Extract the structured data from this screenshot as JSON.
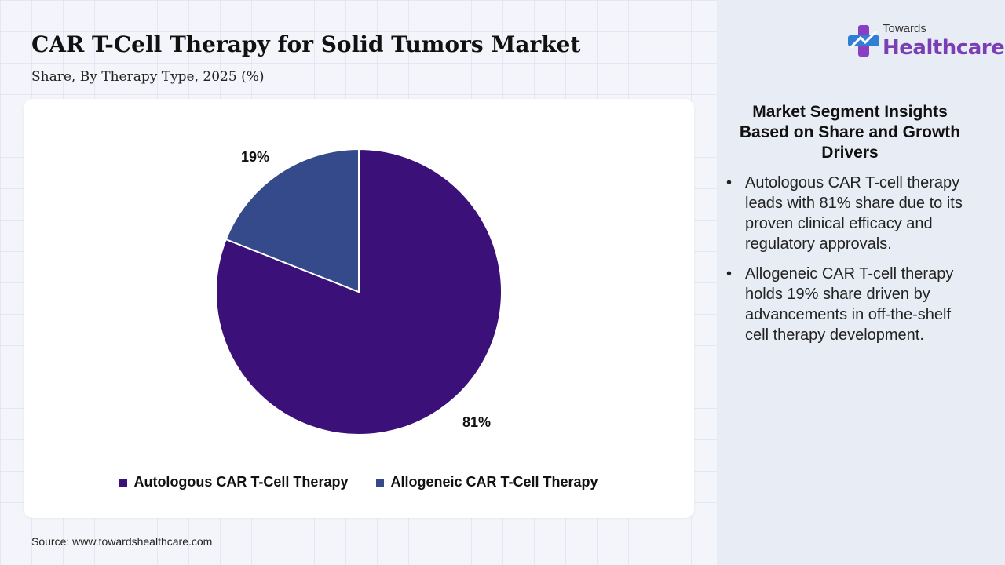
{
  "header": {
    "title": "CAR T-Cell Therapy for Solid Tumors Market",
    "subtitle": "Share, By Therapy Type, 2025 (%)"
  },
  "logo": {
    "top_text": "Towards",
    "main_text": "Healthcare"
  },
  "chart_data": {
    "type": "pie",
    "categories": [
      "Autologous CAR T-Cell Therapy",
      "Allogeneic CAR T-Cell Therapy"
    ],
    "values": [
      81,
      19
    ],
    "data_labels": [
      "81%",
      "19%"
    ],
    "colors": [
      "#3b1078",
      "#354a8a"
    ],
    "legend_position": "bottom"
  },
  "insights": {
    "title": "Market Segment Insights Based on Share and Growth Drivers",
    "bullets": [
      "Autologous CAR T-cell therapy leads with 81% share due to its proven clinical efficacy and regulatory approvals.",
      "Allogeneic CAR T-cell therapy holds 19% share driven by advancements in off-the-shelf cell therapy development."
    ]
  },
  "source": "Source: www.towardshealthcare.com"
}
